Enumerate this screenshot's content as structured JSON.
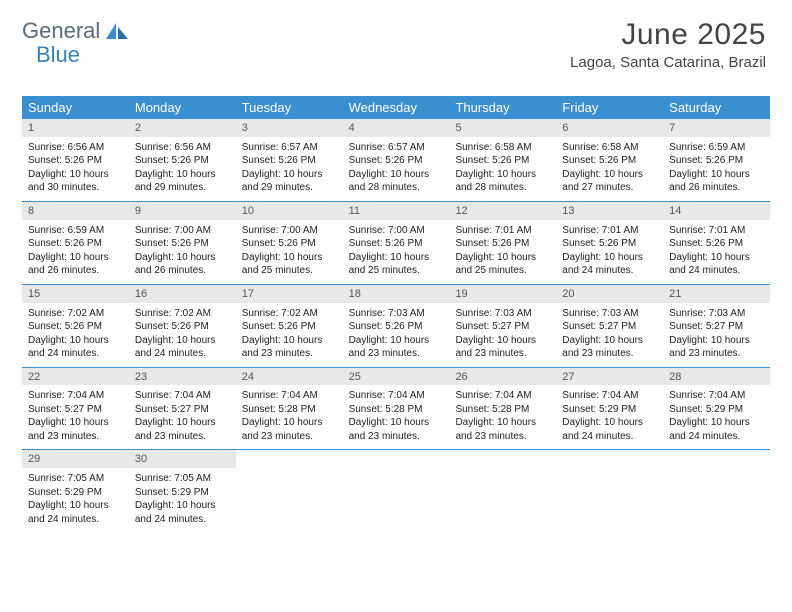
{
  "brand": {
    "word1": "General",
    "word2": "Blue"
  },
  "header": {
    "title": "June 2025",
    "location": "Lagoa, Santa Catarina, Brazil"
  },
  "colors": {
    "header_bar": "#3a8fd0",
    "daynum_bg": "#e8e8e8",
    "week_divider": "#3a8fd0",
    "logo_gray": "#5a6a78",
    "logo_blue": "#3a7fb8",
    "text": "#222222"
  },
  "layout": {
    "weekday_fontsize": 13,
    "daynum_fontsize": 11,
    "cell_fontsize": 10,
    "title_fontsize": 30,
    "location_fontsize": 15
  },
  "weekdays": [
    "Sunday",
    "Monday",
    "Tuesday",
    "Wednesday",
    "Thursday",
    "Friday",
    "Saturday"
  ],
  "weeks": [
    [
      {
        "n": "1",
        "sunrise": "6:56 AM",
        "sunset": "5:26 PM",
        "daylight": "10 hours and 30 minutes."
      },
      {
        "n": "2",
        "sunrise": "6:56 AM",
        "sunset": "5:26 PM",
        "daylight": "10 hours and 29 minutes."
      },
      {
        "n": "3",
        "sunrise": "6:57 AM",
        "sunset": "5:26 PM",
        "daylight": "10 hours and 29 minutes."
      },
      {
        "n": "4",
        "sunrise": "6:57 AM",
        "sunset": "5:26 PM",
        "daylight": "10 hours and 28 minutes."
      },
      {
        "n": "5",
        "sunrise": "6:58 AM",
        "sunset": "5:26 PM",
        "daylight": "10 hours and 28 minutes."
      },
      {
        "n": "6",
        "sunrise": "6:58 AM",
        "sunset": "5:26 PM",
        "daylight": "10 hours and 27 minutes."
      },
      {
        "n": "7",
        "sunrise": "6:59 AM",
        "sunset": "5:26 PM",
        "daylight": "10 hours and 26 minutes."
      }
    ],
    [
      {
        "n": "8",
        "sunrise": "6:59 AM",
        "sunset": "5:26 PM",
        "daylight": "10 hours and 26 minutes."
      },
      {
        "n": "9",
        "sunrise": "7:00 AM",
        "sunset": "5:26 PM",
        "daylight": "10 hours and 26 minutes."
      },
      {
        "n": "10",
        "sunrise": "7:00 AM",
        "sunset": "5:26 PM",
        "daylight": "10 hours and 25 minutes."
      },
      {
        "n": "11",
        "sunrise": "7:00 AM",
        "sunset": "5:26 PM",
        "daylight": "10 hours and 25 minutes."
      },
      {
        "n": "12",
        "sunrise": "7:01 AM",
        "sunset": "5:26 PM",
        "daylight": "10 hours and 25 minutes."
      },
      {
        "n": "13",
        "sunrise": "7:01 AM",
        "sunset": "5:26 PM",
        "daylight": "10 hours and 24 minutes."
      },
      {
        "n": "14",
        "sunrise": "7:01 AM",
        "sunset": "5:26 PM",
        "daylight": "10 hours and 24 minutes."
      }
    ],
    [
      {
        "n": "15",
        "sunrise": "7:02 AM",
        "sunset": "5:26 PM",
        "daylight": "10 hours and 24 minutes."
      },
      {
        "n": "16",
        "sunrise": "7:02 AM",
        "sunset": "5:26 PM",
        "daylight": "10 hours and 24 minutes."
      },
      {
        "n": "17",
        "sunrise": "7:02 AM",
        "sunset": "5:26 PM",
        "daylight": "10 hours and 23 minutes."
      },
      {
        "n": "18",
        "sunrise": "7:03 AM",
        "sunset": "5:26 PM",
        "daylight": "10 hours and 23 minutes."
      },
      {
        "n": "19",
        "sunrise": "7:03 AM",
        "sunset": "5:27 PM",
        "daylight": "10 hours and 23 minutes."
      },
      {
        "n": "20",
        "sunrise": "7:03 AM",
        "sunset": "5:27 PM",
        "daylight": "10 hours and 23 minutes."
      },
      {
        "n": "21",
        "sunrise": "7:03 AM",
        "sunset": "5:27 PM",
        "daylight": "10 hours and 23 minutes."
      }
    ],
    [
      {
        "n": "22",
        "sunrise": "7:04 AM",
        "sunset": "5:27 PM",
        "daylight": "10 hours and 23 minutes."
      },
      {
        "n": "23",
        "sunrise": "7:04 AM",
        "sunset": "5:27 PM",
        "daylight": "10 hours and 23 minutes."
      },
      {
        "n": "24",
        "sunrise": "7:04 AM",
        "sunset": "5:28 PM",
        "daylight": "10 hours and 23 minutes."
      },
      {
        "n": "25",
        "sunrise": "7:04 AM",
        "sunset": "5:28 PM",
        "daylight": "10 hours and 23 minutes."
      },
      {
        "n": "26",
        "sunrise": "7:04 AM",
        "sunset": "5:28 PM",
        "daylight": "10 hours and 23 minutes."
      },
      {
        "n": "27",
        "sunrise": "7:04 AM",
        "sunset": "5:29 PM",
        "daylight": "10 hours and 24 minutes."
      },
      {
        "n": "28",
        "sunrise": "7:04 AM",
        "sunset": "5:29 PM",
        "daylight": "10 hours and 24 minutes."
      }
    ],
    [
      {
        "n": "29",
        "sunrise": "7:05 AM",
        "sunset": "5:29 PM",
        "daylight": "10 hours and 24 minutes."
      },
      {
        "n": "30",
        "sunrise": "7:05 AM",
        "sunset": "5:29 PM",
        "daylight": "10 hours and 24 minutes."
      },
      null,
      null,
      null,
      null,
      null
    ]
  ],
  "labels": {
    "sunrise_prefix": "Sunrise: ",
    "sunset_prefix": "Sunset: ",
    "daylight_prefix": "Daylight: "
  }
}
